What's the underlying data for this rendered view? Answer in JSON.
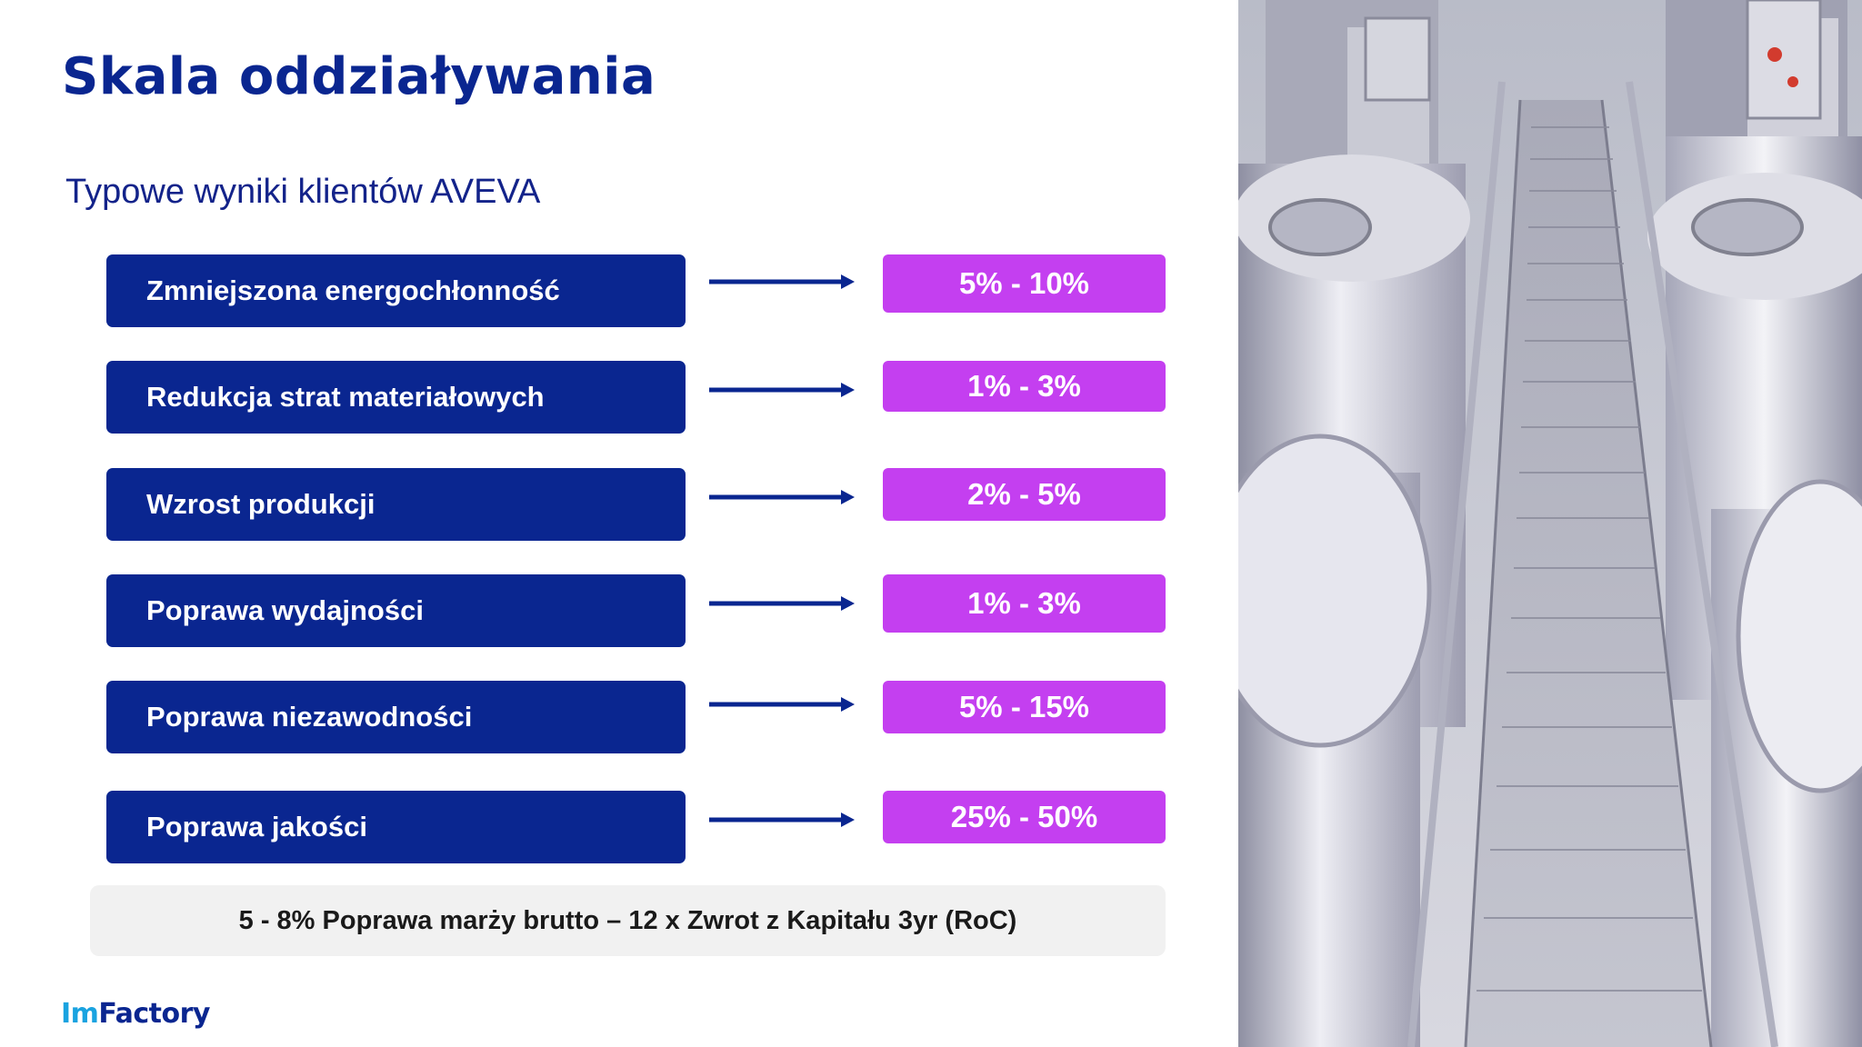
{
  "title": "Skala oddziaływania",
  "subtitle": "Typowe wyniki klientów AVEVA",
  "rows": [
    {
      "label": "Zmniejszona energochłonność",
      "value": "5% - 10%"
    },
    {
      "label": "Redukcja strat materiałowych",
      "value": "1% - 3%"
    },
    {
      "label": "Wzrost produkcji",
      "value": "2% - 5%"
    },
    {
      "label": "Poprawa wydajności",
      "value": "1% - 3%"
    },
    {
      "label": "Poprawa niezawodności",
      "value": "5% - 15%"
    },
    {
      "label": "Poprawa jakości",
      "value": "25% - 50%"
    }
  ],
  "summary": "5 - 8% Poprawa marży brutto – 12 x Zwrot z Kapitału 3yr (RoC)",
  "logo": {
    "prefix": "Im",
    "suffix": "Factory"
  },
  "colors": {
    "navy": "#0a2690",
    "magenta": "#c43ff0",
    "summary_bg": "#f1f1f1"
  },
  "image": {
    "icon": "industrial-tanks-catwalk-photo"
  }
}
